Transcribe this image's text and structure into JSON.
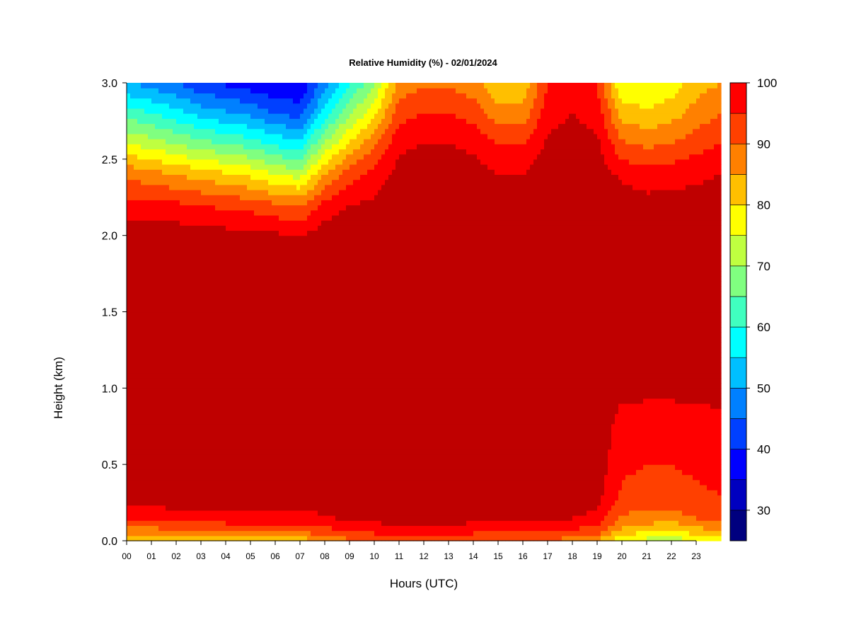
{
  "chart_data": {
    "type": "heatmap",
    "title": "Relative Humidity (%) - 02/01/2024",
    "xlabel": "Hours (UTC)",
    "ylabel": "Height (km)",
    "xlim": [
      0,
      24
    ],
    "ylim": [
      0,
      3.0
    ],
    "x_tick_labels": [
      "00",
      "01",
      "02",
      "03",
      "04",
      "05",
      "06",
      "07",
      "08",
      "09",
      "10",
      "11",
      "12",
      "13",
      "14",
      "15",
      "16",
      "17",
      "18",
      "19",
      "20",
      "21",
      "22",
      "23"
    ],
    "y_tick_labels": [
      "0.0",
      "0.5",
      "1.0",
      "1.5",
      "2.0",
      "2.5",
      "3.0"
    ],
    "y_ticks": [
      0,
      0.5,
      1.0,
      1.5,
      2.0,
      2.5,
      3.0
    ],
    "colorbar": {
      "levels": [
        25,
        30,
        35,
        40,
        45,
        50,
        55,
        60,
        65,
        70,
        75,
        80,
        85,
        90,
        95,
        100
      ],
      "tick_labels": [
        "30",
        "40",
        "50",
        "60",
        "70",
        "80",
        "90",
        "100"
      ],
      "tick_values": [
        30,
        40,
        50,
        60,
        70,
        80,
        90,
        100
      ],
      "colors": [
        "#00007f",
        "#0000bf",
        "#0000ff",
        "#0040ff",
        "#0080ff",
        "#00bfff",
        "#00ffff",
        "#40ffbf",
        "#80ff80",
        "#bfff40",
        "#ffff00",
        "#ffbf00",
        "#ff8000",
        "#ff4000",
        "#ff0000",
        "#bf0000",
        "#7f0000"
      ]
    },
    "profile_hours": [
      0,
      1,
      2,
      3,
      4,
      5,
      6,
      7,
      8,
      9,
      10,
      11,
      12,
      13,
      14,
      15,
      16,
      17,
      18,
      19,
      20,
      21,
      22,
      23,
      24
    ],
    "profile_heights_km": [
      0.0,
      0.05,
      0.1,
      0.15,
      0.2,
      0.3,
      0.5,
      0.8,
      1.0,
      1.5,
      2.0,
      2.2,
      2.4,
      2.6,
      2.8,
      3.0
    ],
    "rh_values": [
      [
        73,
        80,
        87,
        91,
        94,
        97,
        98,
        98,
        99,
        99,
        98,
        92,
        84,
        70,
        58,
        45
      ],
      [
        73,
        80,
        87,
        91,
        94,
        97,
        98,
        98,
        99,
        99,
        98,
        91,
        82,
        68,
        55,
        43
      ],
      [
        74,
        81,
        88,
        92,
        95,
        97,
        98,
        98,
        99,
        99,
        98,
        91,
        80,
        65,
        52,
        40
      ],
      [
        75,
        82,
        88,
        92,
        95,
        97,
        98,
        98,
        99,
        99,
        97,
        90,
        78,
        62,
        48,
        36
      ],
      [
        76,
        83,
        89,
        92,
        95,
        97,
        98,
        98,
        99,
        99,
        97,
        89,
        76,
        60,
        46,
        34
      ],
      [
        76,
        83,
        89,
        92,
        95,
        97,
        98,
        98,
        99,
        99,
        97,
        88,
        74,
        58,
        44,
        32
      ],
      [
        77,
        84,
        89,
        93,
        95,
        97,
        98,
        98,
        99,
        99,
        96,
        86,
        70,
        54,
        40,
        30
      ],
      [
        77,
        84,
        90,
        93,
        95,
        97,
        98,
        98,
        99,
        99,
        95,
        84,
        68,
        52,
        38,
        30
      ],
      [
        80,
        86,
        91,
        94,
        96,
        98,
        98,
        99,
        99,
        99,
        98,
        92,
        80,
        66,
        52,
        42
      ],
      [
        84,
        89,
        93,
        96,
        97,
        98,
        99,
        99,
        99,
        99,
        99,
        95,
        88,
        76,
        64,
        54
      ],
      [
        85,
        90,
        94,
        96,
        97,
        98,
        99,
        99,
        99,
        99,
        99,
        96,
        92,
        84,
        74,
        64
      ],
      [
        86,
        91,
        95,
        97,
        98,
        98,
        98,
        97,
        99,
        99,
        99,
        99,
        97,
        94,
        88,
        82
      ],
      [
        86,
        91,
        95,
        97,
        98,
        98,
        97,
        97,
        99,
        99,
        99,
        99,
        98,
        95,
        90,
        84
      ],
      [
        86,
        91,
        95,
        97,
        98,
        98,
        97,
        97,
        99,
        99,
        99,
        99,
        98,
        95,
        90,
        84
      ],
      [
        85,
        90,
        94,
        96,
        97,
        98,
        97,
        97,
        99,
        99,
        99,
        99,
        97,
        94,
        88,
        82
      ],
      [
        84,
        89,
        93,
        96,
        97,
        98,
        97,
        97,
        99,
        99,
        99,
        98,
        95,
        90,
        82,
        76
      ],
      [
        84,
        89,
        93,
        96,
        97,
        98,
        98,
        98,
        99,
        99,
        99,
        98,
        95,
        90,
        82,
        76
      ],
      [
        85,
        90,
        94,
        96,
        97,
        98,
        98,
        99,
        99,
        99,
        99,
        99,
        98,
        96,
        93,
        90
      ],
      [
        82,
        88,
        92,
        95,
        96,
        98,
        98,
        99,
        99,
        99,
        99,
        99,
        98,
        97,
        95,
        92
      ],
      [
        80,
        86,
        90,
        93,
        95,
        97,
        98,
        99,
        99,
        99,
        99,
        99,
        98,
        96,
        93,
        90
      ],
      [
        70,
        76,
        81,
        84,
        86,
        89,
        91,
        93,
        97,
        99,
        99,
        98,
        94,
        86,
        78,
        70
      ],
      [
        68,
        74,
        79,
        83,
        85,
        88,
        90,
        92,
        97,
        99,
        99,
        97,
        92,
        84,
        76,
        70
      ],
      [
        66,
        72,
        78,
        82,
        85,
        88,
        90,
        92,
        97,
        99,
        99,
        97,
        93,
        85,
        78,
        72
      ],
      [
        70,
        76,
        81,
        85,
        87,
        89,
        91,
        93,
        97,
        99,
        99,
        97,
        94,
        88,
        82,
        78
      ],
      [
        73,
        78,
        83,
        86,
        88,
        90,
        92,
        94,
        97,
        99,
        99,
        98,
        95,
        90,
        85,
        80
      ]
    ]
  }
}
